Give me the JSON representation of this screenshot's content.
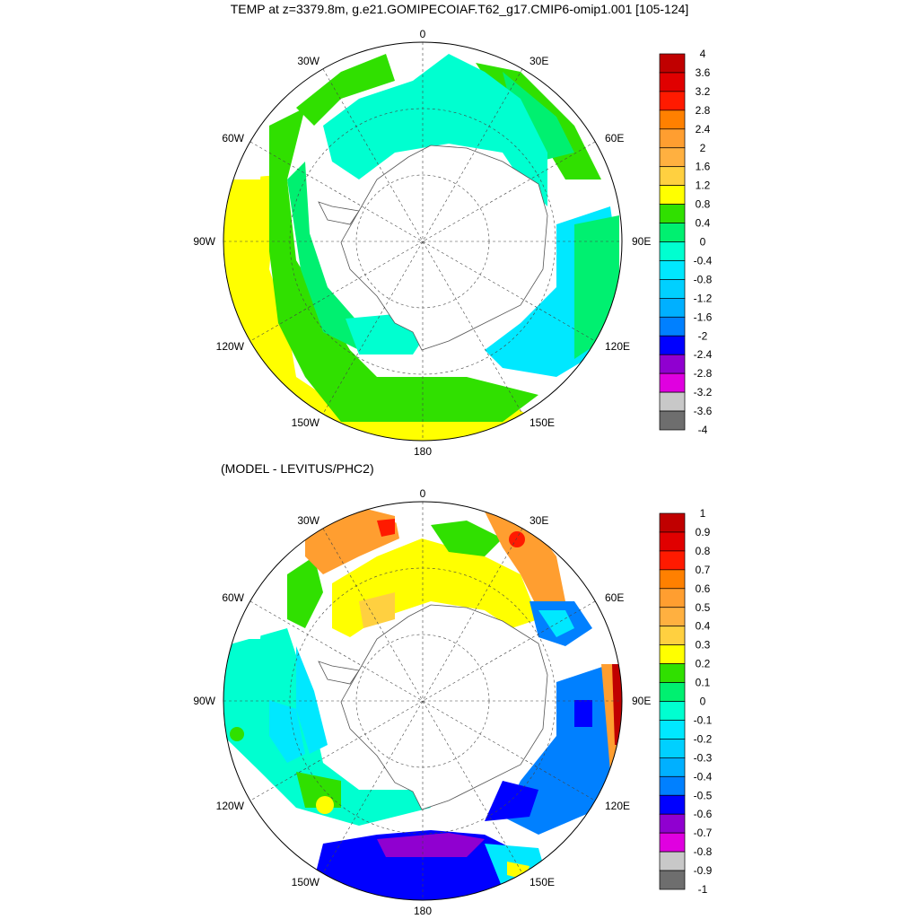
{
  "title": "TEMP at z=3379.8m, g.e21.GOMIPECOIAF.T62_g17.CMIP6-omip1.001 [105-124]",
  "subtitle": "(MODEL - LEVITUS/PHC2)",
  "map_labels": {
    "lon_0": "0",
    "lon_30e": "30E",
    "lon_60e": "60E",
    "lon_90e": "90E",
    "lon_120e": "120E",
    "lon_150e": "150E",
    "lon_180": "180",
    "lon_150w": "150W",
    "lon_120w": "120W",
    "lon_90w": "90W",
    "lon_60w": "60W",
    "lon_30w": "30W"
  },
  "top_colorbar": {
    "labels": [
      "4",
      "3.6",
      "3.2",
      "2.8",
      "2.4",
      "2",
      "1.6",
      "1.2",
      "0.8",
      "0.4",
      "0",
      "-0.4",
      "-0.8",
      "-1.2",
      "-1.6",
      "-2",
      "-2.4",
      "-2.8",
      "-3.2",
      "-3.6",
      "-4"
    ],
    "colors": [
      "#c00000",
      "#e00000",
      "#ff1a00",
      "#ff8000",
      "#ff9e30",
      "#ffb040",
      "#ffd040",
      "#ffff00",
      "#30e000",
      "#00f070",
      "#00ffd0",
      "#00e8ff",
      "#00d0ff",
      "#00b0ff",
      "#0080ff",
      "#0000ff",
      "#9000d0",
      "#e000e0",
      "#c8c8c8",
      "#6e6e6e"
    ]
  },
  "bottom_colorbar": {
    "labels": [
      "1",
      "0.9",
      "0.8",
      "0.7",
      "0.6",
      "0.5",
      "0.4",
      "0.3",
      "0.2",
      "0.1",
      "0",
      "-0.1",
      "-0.2",
      "-0.3",
      "-0.4",
      "-0.5",
      "-0.6",
      "-0.7",
      "-0.8",
      "-0.9",
      "-1"
    ],
    "colors": [
      "#c00000",
      "#e00000",
      "#ff1a00",
      "#ff8000",
      "#ff9e30",
      "#ffb040",
      "#ffd040",
      "#ffff00",
      "#30e000",
      "#00f070",
      "#00ffd0",
      "#00e8ff",
      "#00d0ff",
      "#00b0ff",
      "#0080ff",
      "#0000ff",
      "#9000d0",
      "#e000e0",
      "#c8c8c8",
      "#6e6e6e"
    ]
  }
}
